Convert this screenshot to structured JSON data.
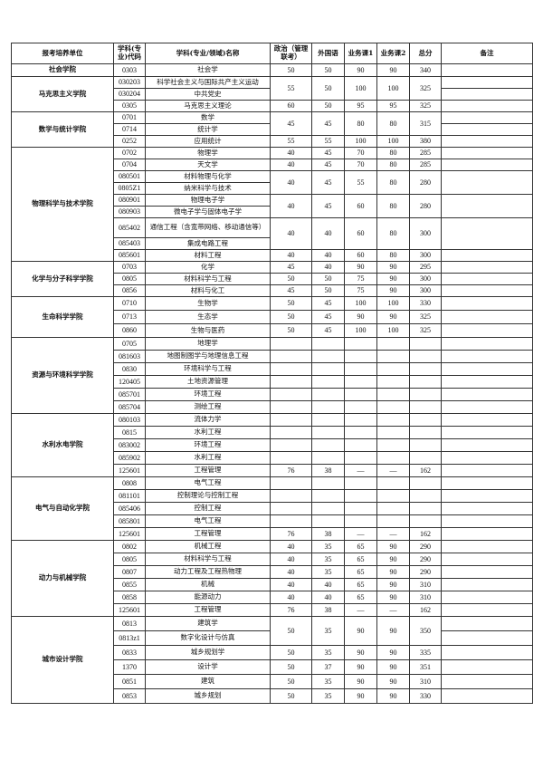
{
  "headers": [
    "报考培养单位",
    "学科(专业)代码",
    "学科(专业/领域)名称",
    "政治（管理联考）",
    "外国语",
    "业务课1",
    "业务课2",
    "总分",
    "备注"
  ],
  "colleges": [
    {
      "name": "社会学院",
      "rowh": 14,
      "groups": [
        {
          "rows": [
            {
              "code": "0303",
              "name": "社会学"
            }
          ],
          "scores": [
            "50",
            "50",
            "90",
            "90",
            "340"
          ]
        }
      ]
    },
    {
      "name": "马克思主义学院",
      "rowh": 13,
      "groups": [
        {
          "rows": [
            {
              "code": "030203",
              "name": "科学社会主义与国际共产主义运动"
            },
            {
              "code": "030204",
              "name": "中共党史"
            }
          ],
          "scores": [
            "55",
            "50",
            "100",
            "100",
            "325"
          ],
          "split_remark": true
        },
        {
          "rows": [
            {
              "code": "0305",
              "name": "马克思主义理论"
            }
          ],
          "scores": [
            "60",
            "50",
            "95",
            "95",
            "325"
          ]
        }
      ]
    },
    {
      "name": "数学与统计学院",
      "rowh": 13,
      "groups": [
        {
          "rows": [
            {
              "code": "0701",
              "name": "数学"
            },
            {
              "code": "0714",
              "name": "统计学"
            }
          ],
          "scores": [
            "45",
            "45",
            "80",
            "80",
            "315"
          ],
          "split_remark": true
        },
        {
          "rows": [
            {
              "code": "0252",
              "name": "应用统计"
            }
          ],
          "scores": [
            "55",
            "55",
            "100",
            "100",
            "380"
          ]
        }
      ]
    },
    {
      "name": "物理科学与技术学院",
      "rowh": 13,
      "groups": [
        {
          "rows": [
            {
              "code": "0702",
              "name": "物理学"
            }
          ],
          "scores": [
            "40",
            "45",
            "70",
            "80",
            "285"
          ]
        },
        {
          "rows": [
            {
              "code": "0704",
              "name": "天文学"
            }
          ],
          "scores": [
            "40",
            "45",
            "70",
            "80",
            "285"
          ]
        },
        {
          "rows": [
            {
              "code": "080501",
              "name": "材料物理与化学"
            },
            {
              "code": "0805Z1",
              "name": "纳米科学与技术"
            }
          ],
          "scores": [
            "40",
            "45",
            "55",
            "80",
            "280"
          ]
        },
        {
          "rows": [
            {
              "code": "080901",
              "name": "物理电子学"
            },
            {
              "code": "080903",
              "name": "微电子学与固体电子学"
            }
          ],
          "scores": [
            "40",
            "45",
            "60",
            "80",
            "280"
          ]
        },
        {
          "rows": [
            {
              "code": "085402",
              "name": "通信工程（含宽带网络、移动通信等）",
              "tall": true
            },
            {
              "code": "085403",
              "name": "集成电路工程"
            }
          ],
          "scores": [
            "40",
            "40",
            "60",
            "80",
            "300"
          ]
        },
        {
          "rows": [
            {
              "code": "085601",
              "name": "材料工程"
            }
          ],
          "scores": [
            "40",
            "40",
            "60",
            "80",
            "300"
          ]
        }
      ]
    },
    {
      "name": "化学与分子科学学院",
      "rowh": 13,
      "groups": [
        {
          "rows": [
            {
              "code": "0703",
              "name": "化学"
            }
          ],
          "scores": [
            "45",
            "40",
            "90",
            "90",
            "295"
          ]
        },
        {
          "rows": [
            {
              "code": "0805",
              "name": "材料科学与工程"
            }
          ],
          "scores": [
            "50",
            "50",
            "75",
            "90",
            "300"
          ]
        },
        {
          "rows": [
            {
              "code": "0856",
              "name": "材料与化工"
            }
          ],
          "scores": [
            "45",
            "50",
            "75",
            "90",
            "300"
          ]
        }
      ]
    },
    {
      "name": "生命科学学院",
      "rowh": 15,
      "groups": [
        {
          "rows": [
            {
              "code": "0710",
              "name": "生物学"
            }
          ],
          "scores": [
            "50",
            "45",
            "100",
            "100",
            "330"
          ]
        },
        {
          "rows": [
            {
              "code": "0713",
              "name": "生态学"
            }
          ],
          "scores": [
            "50",
            "45",
            "90",
            "90",
            "325"
          ]
        },
        {
          "rows": [
            {
              "code": "0860",
              "name": "生物与医药"
            }
          ],
          "scores": [
            "50",
            "45",
            "100",
            "100",
            "325"
          ]
        }
      ]
    },
    {
      "name": "资源与环境科学学院",
      "rowh": 14,
      "groups": [
        {
          "rows": [
            {
              "code": "0705",
              "name": "地理学"
            }
          ],
          "scores": [
            "",
            "",
            "",
            "",
            ""
          ]
        },
        {
          "rows": [
            {
              "code": "081603",
              "name": "地图制图学与地理信息工程"
            }
          ],
          "scores": [
            "",
            "",
            "",
            "",
            ""
          ]
        },
        {
          "rows": [
            {
              "code": "0830",
              "name": "环境科学与工程"
            }
          ],
          "scores": [
            "",
            "",
            "",
            "",
            ""
          ]
        },
        {
          "rows": [
            {
              "code": "120405",
              "name": "土地资源管理"
            }
          ],
          "scores": [
            "",
            "",
            "",
            "",
            ""
          ]
        },
        {
          "rows": [
            {
              "code": "085701",
              "name": "环境工程"
            }
          ],
          "scores": [
            "",
            "",
            "",
            "",
            ""
          ]
        },
        {
          "rows": [
            {
              "code": "085704",
              "name": "测绘工程"
            }
          ],
          "scores": [
            "",
            "",
            "",
            "",
            ""
          ]
        }
      ]
    },
    {
      "name": "水利水电学院",
      "rowh": 14,
      "groups": [
        {
          "rows": [
            {
              "code": "080103",
              "name": "流体力学"
            }
          ],
          "scores": [
            "",
            "",
            "",
            "",
            ""
          ]
        },
        {
          "rows": [
            {
              "code": "0815",
              "name": "水利工程"
            }
          ],
          "scores": [
            "",
            "",
            "",
            "",
            ""
          ]
        },
        {
          "rows": [
            {
              "code": "083002",
              "name": "环境工程"
            }
          ],
          "scores": [
            "",
            "",
            "",
            "",
            ""
          ]
        },
        {
          "rows": [
            {
              "code": "085902",
              "name": "水利工程"
            }
          ],
          "scores": [
            "",
            "",
            "",
            "",
            ""
          ]
        },
        {
          "rows": [
            {
              "code": "125601",
              "name": "工程管理"
            }
          ],
          "scores": [
            "76",
            "38",
            "—",
            "—",
            "162"
          ]
        }
      ]
    },
    {
      "name": "电气与自动化学院",
      "rowh": 14,
      "groups": [
        {
          "rows": [
            {
              "code": "0808",
              "name": "电气工程"
            }
          ],
          "scores": [
            "",
            "",
            "",
            "",
            ""
          ]
        },
        {
          "rows": [
            {
              "code": "081101",
              "name": "控制理论与控制工程"
            }
          ],
          "scores": [
            "",
            "",
            "",
            "",
            ""
          ]
        },
        {
          "rows": [
            {
              "code": "085406",
              "name": "控制工程"
            }
          ],
          "scores": [
            "",
            "",
            "",
            "",
            ""
          ]
        },
        {
          "rows": [
            {
              "code": "085801",
              "name": "电气工程"
            }
          ],
          "scores": [
            "",
            "",
            "",
            "",
            ""
          ]
        },
        {
          "rows": [
            {
              "code": "125601",
              "name": "工程管理"
            }
          ],
          "scores": [
            "76",
            "38",
            "—",
            "—",
            "162"
          ]
        }
      ]
    },
    {
      "name": "动力与机械学院",
      "rowh": 14,
      "groups": [
        {
          "rows": [
            {
              "code": "0802",
              "name": "机械工程"
            }
          ],
          "scores": [
            "40",
            "35",
            "65",
            "90",
            "290"
          ]
        },
        {
          "rows": [
            {
              "code": "0805",
              "name": "材料科学与工程"
            }
          ],
          "scores": [
            "40",
            "35",
            "65",
            "90",
            "290"
          ]
        },
        {
          "rows": [
            {
              "code": "0807",
              "name": "动力工程及工程热物理"
            }
          ],
          "scores": [
            "40",
            "35",
            "65",
            "90",
            "290"
          ]
        },
        {
          "rows": [
            {
              "code": "0855",
              "name": "机械"
            }
          ],
          "scores": [
            "40",
            "40",
            "65",
            "90",
            "310"
          ]
        },
        {
          "rows": [
            {
              "code": "0858",
              "name": "能源动力"
            }
          ],
          "scores": [
            "40",
            "40",
            "65",
            "90",
            "310"
          ]
        },
        {
          "rows": [
            {
              "code": "125601",
              "name": "工程管理"
            }
          ],
          "scores": [
            "76",
            "38",
            "—",
            "—",
            "162"
          ]
        }
      ]
    },
    {
      "name": "城市设计学院",
      "rowh": 16,
      "groups": [
        {
          "rows": [
            {
              "code": "0813",
              "name": "建筑学"
            },
            {
              "code": "0813z1",
              "name": "数字化设计与仿真"
            }
          ],
          "scores": [
            "50",
            "35",
            "90",
            "90",
            "350"
          ],
          "split_remark": true
        },
        {
          "rows": [
            {
              "code": "0833",
              "name": "城乡规划学"
            }
          ],
          "scores": [
            "50",
            "35",
            "90",
            "90",
            "335"
          ]
        },
        {
          "rows": [
            {
              "code": "1370",
              "name": "设计学"
            }
          ],
          "scores": [
            "50",
            "37",
            "90",
            "90",
            "351"
          ]
        },
        {
          "rows": [
            {
              "code": "0851",
              "name": "建筑"
            }
          ],
          "scores": [
            "50",
            "35",
            "90",
            "90",
            "310"
          ]
        },
        {
          "rows": [
            {
              "code": "0853",
              "name": "城乡规划"
            }
          ],
          "scores": [
            "50",
            "35",
            "90",
            "90",
            "330"
          ]
        }
      ]
    }
  ]
}
